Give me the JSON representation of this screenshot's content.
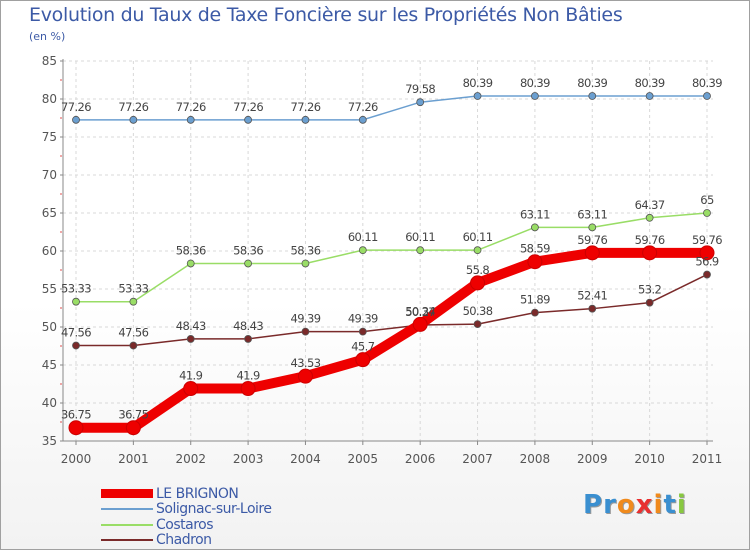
{
  "chart_data": {
    "type": "line",
    "title": "Evolution du Taux de Taxe Foncière sur les Propriétés Non Bâties",
    "subtitle": "(en %)",
    "categories": [
      "2000",
      "2001",
      "2002",
      "2003",
      "2004",
      "2005",
      "2006",
      "2007",
      "2008",
      "2009",
      "2010",
      "2011"
    ],
    "ylim": [
      35,
      85
    ],
    "yticks": [
      35,
      40,
      45,
      50,
      55,
      60,
      65,
      70,
      75,
      80,
      85
    ],
    "grid": true,
    "legend_position": "bottom-left",
    "series": [
      {
        "name": "LE BRIGNON",
        "color": "#ee0000",
        "values": [
          36.75,
          36.75,
          41.9,
          41.9,
          43.53,
          45.7,
          50.34,
          55.8,
          58.59,
          59.76,
          59.76,
          59.76
        ],
        "labels": [
          "36.75",
          "36.75",
          "41.9",
          "41.9",
          "43.53",
          "45.7",
          "50.34",
          "55.8",
          "58.59",
          "59.76",
          "59.76",
          "59.76"
        ]
      },
      {
        "name": "Solignac-sur-Loire",
        "color": "#6b9fd0",
        "values": [
          77.26,
          77.26,
          77.26,
          77.26,
          77.26,
          77.26,
          79.58,
          80.39,
          80.39,
          80.39,
          80.39,
          80.39
        ],
        "labels": [
          "77.26",
          "77.26",
          "77.26",
          "77.26",
          "77.26",
          "77.26",
          "79.58",
          "80.39",
          "80.39",
          "80.39",
          "80.39",
          "80.39"
        ]
      },
      {
        "name": "Costaros",
        "color": "#99dd66",
        "values": [
          53.33,
          53.33,
          58.36,
          58.36,
          58.36,
          60.11,
          60.11,
          60.11,
          63.11,
          63.11,
          64.37,
          65
        ],
        "labels": [
          "53.33",
          "53.33",
          "58.36",
          "58.36",
          "58.36",
          "60.11",
          "60.11",
          "60.11",
          "63.11",
          "63.11",
          "64.37",
          "65"
        ]
      },
      {
        "name": "Chadron",
        "color": "#7a2a2a",
        "values": [
          47.56,
          47.56,
          48.43,
          48.43,
          49.39,
          49.39,
          50.27,
          50.38,
          51.89,
          52.41,
          53.2,
          56.9
        ],
        "labels": [
          "47.56",
          "47.56",
          "48.43",
          "48.43",
          "49.39",
          "49.39",
          "50.27",
          "50.38",
          "51.89",
          "52.41",
          "53.2",
          "56.9"
        ]
      }
    ]
  },
  "logo": {
    "text": "Proxiti",
    "colors": [
      "#3a8fd0",
      "#3a8fd0",
      "#f08a1c",
      "#e83030",
      "#f08a1c",
      "#3a8fd0",
      "#88c840"
    ]
  }
}
